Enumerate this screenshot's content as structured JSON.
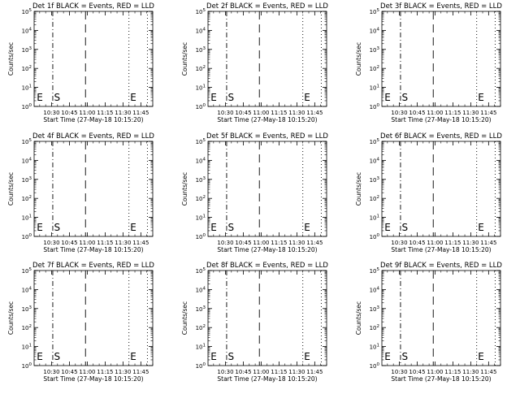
{
  "colors": {
    "background": "#ffffff",
    "ink": "#000000"
  },
  "chart_data": [
    {
      "type": "line",
      "title": "Det 1f BLACK = Events, RED = LLD",
      "xlabel": "Start Time (27-May-18 10:15:20)",
      "ylabel": "Counts/sec",
      "x_ticks": [
        "10:30",
        "10:45",
        "11:00",
        "11:15",
        "11:30",
        "11:45"
      ],
      "y_ticks": [
        {
          "base": "10",
          "exp": "0"
        },
        {
          "base": "10",
          "exp": "1"
        },
        {
          "base": "10",
          "exp": "2"
        },
        {
          "base": "10",
          "exp": "3"
        },
        {
          "base": "10",
          "exp": "4"
        },
        {
          "base": "10",
          "exp": "5"
        }
      ],
      "xlim": [
        "10:15:20",
        "11:55:00"
      ],
      "ylim": [
        1,
        100000
      ],
      "y_scale": "log",
      "series": [],
      "annotations": [
        {
          "label": "E",
          "time": "10:16:30"
        },
        {
          "label": "S",
          "time": "10:31:00"
        },
        {
          "label": "E",
          "time": "11:35:00"
        }
      ],
      "vlines": [
        {
          "time": "10:31:00",
          "style": "dash-dot"
        },
        {
          "time": "10:58:30",
          "style": "dashed"
        },
        {
          "time": "11:35:00",
          "style": "dotted"
        },
        {
          "time": "11:50:30",
          "style": "dotted"
        }
      ]
    },
    {
      "type": "line",
      "title": "Det 2f BLACK = Events, RED = LLD",
      "xlabel": "Start Time (27-May-18 10:15:20)",
      "ylabel": "Counts/sec",
      "x_ticks": [
        "10:30",
        "10:45",
        "11:00",
        "11:15",
        "11:30",
        "11:45"
      ],
      "y_ticks": [
        {
          "base": "10",
          "exp": "0"
        },
        {
          "base": "10",
          "exp": "1"
        },
        {
          "base": "10",
          "exp": "2"
        },
        {
          "base": "10",
          "exp": "3"
        },
        {
          "base": "10",
          "exp": "4"
        },
        {
          "base": "10",
          "exp": "5"
        }
      ],
      "xlim": [
        "10:15:20",
        "11:55:00"
      ],
      "ylim": [
        1,
        100000
      ],
      "y_scale": "log",
      "series": [],
      "annotations": [
        {
          "label": "E",
          "time": "10:16:30"
        },
        {
          "label": "S",
          "time": "10:31:00"
        },
        {
          "label": "E",
          "time": "11:35:00"
        }
      ],
      "vlines": [
        {
          "time": "10:31:00",
          "style": "dash-dot"
        },
        {
          "time": "10:58:30",
          "style": "dashed"
        },
        {
          "time": "11:35:00",
          "style": "dotted"
        },
        {
          "time": "11:50:30",
          "style": "dotted"
        }
      ]
    },
    {
      "type": "line",
      "title": "Det 3f BLACK = Events, RED = LLD",
      "xlabel": "Start Time (27-May-18 10:15:20)",
      "ylabel": "Counts/sec",
      "x_ticks": [
        "10:30",
        "10:45",
        "11:00",
        "11:15",
        "11:30",
        "11:45"
      ],
      "y_ticks": [
        {
          "base": "10",
          "exp": "0"
        },
        {
          "base": "10",
          "exp": "1"
        },
        {
          "base": "10",
          "exp": "2"
        },
        {
          "base": "10",
          "exp": "3"
        },
        {
          "base": "10",
          "exp": "4"
        },
        {
          "base": "10",
          "exp": "5"
        }
      ],
      "xlim": [
        "10:15:20",
        "11:55:00"
      ],
      "ylim": [
        1,
        100000
      ],
      "y_scale": "log",
      "series": [],
      "annotations": [
        {
          "label": "E",
          "time": "10:16:30"
        },
        {
          "label": "S",
          "time": "10:31:00"
        },
        {
          "label": "E",
          "time": "11:35:00"
        }
      ],
      "vlines": [
        {
          "time": "10:31:00",
          "style": "dash-dot"
        },
        {
          "time": "10:58:30",
          "style": "dashed"
        },
        {
          "time": "11:35:00",
          "style": "dotted"
        },
        {
          "time": "11:50:30",
          "style": "dotted"
        }
      ]
    },
    {
      "type": "line",
      "title": "Det 4f BLACK = Events, RED = LLD",
      "xlabel": "Start Time (27-May-18 10:15:20)",
      "ylabel": "Counts/sec",
      "x_ticks": [
        "10:30",
        "10:45",
        "11:00",
        "11:15",
        "11:30",
        "11:45"
      ],
      "y_ticks": [
        {
          "base": "10",
          "exp": "0"
        },
        {
          "base": "10",
          "exp": "1"
        },
        {
          "base": "10",
          "exp": "2"
        },
        {
          "base": "10",
          "exp": "3"
        },
        {
          "base": "10",
          "exp": "4"
        },
        {
          "base": "10",
          "exp": "5"
        }
      ],
      "xlim": [
        "10:15:20",
        "11:55:00"
      ],
      "ylim": [
        1,
        100000
      ],
      "y_scale": "log",
      "series": [],
      "annotations": [
        {
          "label": "E",
          "time": "10:16:30"
        },
        {
          "label": "S",
          "time": "10:31:00"
        },
        {
          "label": "E",
          "time": "11:35:00"
        }
      ],
      "vlines": [
        {
          "time": "10:31:00",
          "style": "dash-dot"
        },
        {
          "time": "10:58:30",
          "style": "dashed"
        },
        {
          "time": "11:35:00",
          "style": "dotted"
        },
        {
          "time": "11:50:30",
          "style": "dotted"
        }
      ]
    },
    {
      "type": "line",
      "title": "Det 5f BLACK = Events, RED = LLD",
      "xlabel": "Start Time (27-May-18 10:15:20)",
      "ylabel": "Counts/sec",
      "x_ticks": [
        "10:30",
        "10:45",
        "11:00",
        "11:15",
        "11:30",
        "11:45"
      ],
      "y_ticks": [
        {
          "base": "10",
          "exp": "0"
        },
        {
          "base": "10",
          "exp": "1"
        },
        {
          "base": "10",
          "exp": "2"
        },
        {
          "base": "10",
          "exp": "3"
        },
        {
          "base": "10",
          "exp": "4"
        },
        {
          "base": "10",
          "exp": "5"
        }
      ],
      "xlim": [
        "10:15:20",
        "11:55:00"
      ],
      "ylim": [
        1,
        100000
      ],
      "y_scale": "log",
      "series": [],
      "annotations": [
        {
          "label": "E",
          "time": "10:16:30"
        },
        {
          "label": "S",
          "time": "10:31:00"
        },
        {
          "label": "E",
          "time": "11:35:00"
        }
      ],
      "vlines": [
        {
          "time": "10:31:00",
          "style": "dash-dot"
        },
        {
          "time": "10:58:30",
          "style": "dashed"
        },
        {
          "time": "11:35:00",
          "style": "dotted"
        },
        {
          "time": "11:50:30",
          "style": "dotted"
        }
      ]
    },
    {
      "type": "line",
      "title": "Det 6f BLACK = Events, RED = LLD",
      "xlabel": "Start Time (27-May-18 10:15:20)",
      "ylabel": "Counts/sec",
      "x_ticks": [
        "10:30",
        "10:45",
        "11:00",
        "11:15",
        "11:30",
        "11:45"
      ],
      "y_ticks": [
        {
          "base": "10",
          "exp": "0"
        },
        {
          "base": "10",
          "exp": "1"
        },
        {
          "base": "10",
          "exp": "2"
        },
        {
          "base": "10",
          "exp": "3"
        },
        {
          "base": "10",
          "exp": "4"
        },
        {
          "base": "10",
          "exp": "5"
        }
      ],
      "xlim": [
        "10:15:20",
        "11:55:00"
      ],
      "ylim": [
        1,
        100000
      ],
      "y_scale": "log",
      "series": [],
      "annotations": [
        {
          "label": "E",
          "time": "10:16:30"
        },
        {
          "label": "S",
          "time": "10:31:00"
        },
        {
          "label": "E",
          "time": "11:35:00"
        }
      ],
      "vlines": [
        {
          "time": "10:31:00",
          "style": "dash-dot"
        },
        {
          "time": "10:58:30",
          "style": "dashed"
        },
        {
          "time": "11:35:00",
          "style": "dotted"
        },
        {
          "time": "11:50:30",
          "style": "dotted"
        }
      ]
    },
    {
      "type": "line",
      "title": "Det 7f BLACK = Events, RED = LLD",
      "xlabel": "Start Time (27-May-18 10:15:20)",
      "ylabel": "Counts/sec",
      "x_ticks": [
        "10:30",
        "10:45",
        "11:00",
        "11:15",
        "11:30",
        "11:45"
      ],
      "y_ticks": [
        {
          "base": "10",
          "exp": "0"
        },
        {
          "base": "10",
          "exp": "1"
        },
        {
          "base": "10",
          "exp": "2"
        },
        {
          "base": "10",
          "exp": "3"
        },
        {
          "base": "10",
          "exp": "4"
        },
        {
          "base": "10",
          "exp": "5"
        }
      ],
      "xlim": [
        "10:15:20",
        "11:55:00"
      ],
      "ylim": [
        1,
        100000
      ],
      "y_scale": "log",
      "series": [],
      "annotations": [
        {
          "label": "E",
          "time": "10:16:30"
        },
        {
          "label": "S",
          "time": "10:31:00"
        },
        {
          "label": "E",
          "time": "11:35:00"
        }
      ],
      "vlines": [
        {
          "time": "10:31:00",
          "style": "dash-dot"
        },
        {
          "time": "10:58:30",
          "style": "dashed"
        },
        {
          "time": "11:35:00",
          "style": "dotted"
        },
        {
          "time": "11:50:30",
          "style": "dotted"
        }
      ]
    },
    {
      "type": "line",
      "title": "Det 8f BLACK = Events, RED = LLD",
      "xlabel": "Start Time (27-May-18 10:15:20)",
      "ylabel": "Counts/sec",
      "x_ticks": [
        "10:30",
        "10:45",
        "11:00",
        "11:15",
        "11:30",
        "11:45"
      ],
      "y_ticks": [
        {
          "base": "10",
          "exp": "0"
        },
        {
          "base": "10",
          "exp": "1"
        },
        {
          "base": "10",
          "exp": "2"
        },
        {
          "base": "10",
          "exp": "3"
        },
        {
          "base": "10",
          "exp": "4"
        },
        {
          "base": "10",
          "exp": "5"
        }
      ],
      "xlim": [
        "10:15:20",
        "11:55:00"
      ],
      "ylim": [
        1,
        100000
      ],
      "y_scale": "log",
      "series": [],
      "annotations": [
        {
          "label": "E",
          "time": "10:16:30"
        },
        {
          "label": "S",
          "time": "10:31:00"
        },
        {
          "label": "E",
          "time": "11:35:00"
        }
      ],
      "vlines": [
        {
          "time": "10:31:00",
          "style": "dash-dot"
        },
        {
          "time": "10:58:30",
          "style": "dashed"
        },
        {
          "time": "11:35:00",
          "style": "dotted"
        },
        {
          "time": "11:50:30",
          "style": "dotted"
        }
      ]
    },
    {
      "type": "line",
      "title": "Det 9f BLACK = Events, RED = LLD",
      "xlabel": "Start Time (27-May-18 10:15:20)",
      "ylabel": "Counts/sec",
      "x_ticks": [
        "10:30",
        "10:45",
        "11:00",
        "11:15",
        "11:30",
        "11:45"
      ],
      "y_ticks": [
        {
          "base": "10",
          "exp": "0"
        },
        {
          "base": "10",
          "exp": "1"
        },
        {
          "base": "10",
          "exp": "2"
        },
        {
          "base": "10",
          "exp": "3"
        },
        {
          "base": "10",
          "exp": "4"
        },
        {
          "base": "10",
          "exp": "5"
        }
      ],
      "xlim": [
        "10:15:20",
        "11:55:00"
      ],
      "ylim": [
        1,
        100000
      ],
      "y_scale": "log",
      "series": [],
      "annotations": [
        {
          "label": "E",
          "time": "10:16:30"
        },
        {
          "label": "S",
          "time": "10:31:00"
        },
        {
          "label": "E",
          "time": "11:35:00"
        }
      ],
      "vlines": [
        {
          "time": "10:31:00",
          "style": "dash-dot"
        },
        {
          "time": "10:58:30",
          "style": "dashed"
        },
        {
          "time": "11:35:00",
          "style": "dotted"
        },
        {
          "time": "11:50:30",
          "style": "dotted"
        }
      ]
    }
  ]
}
